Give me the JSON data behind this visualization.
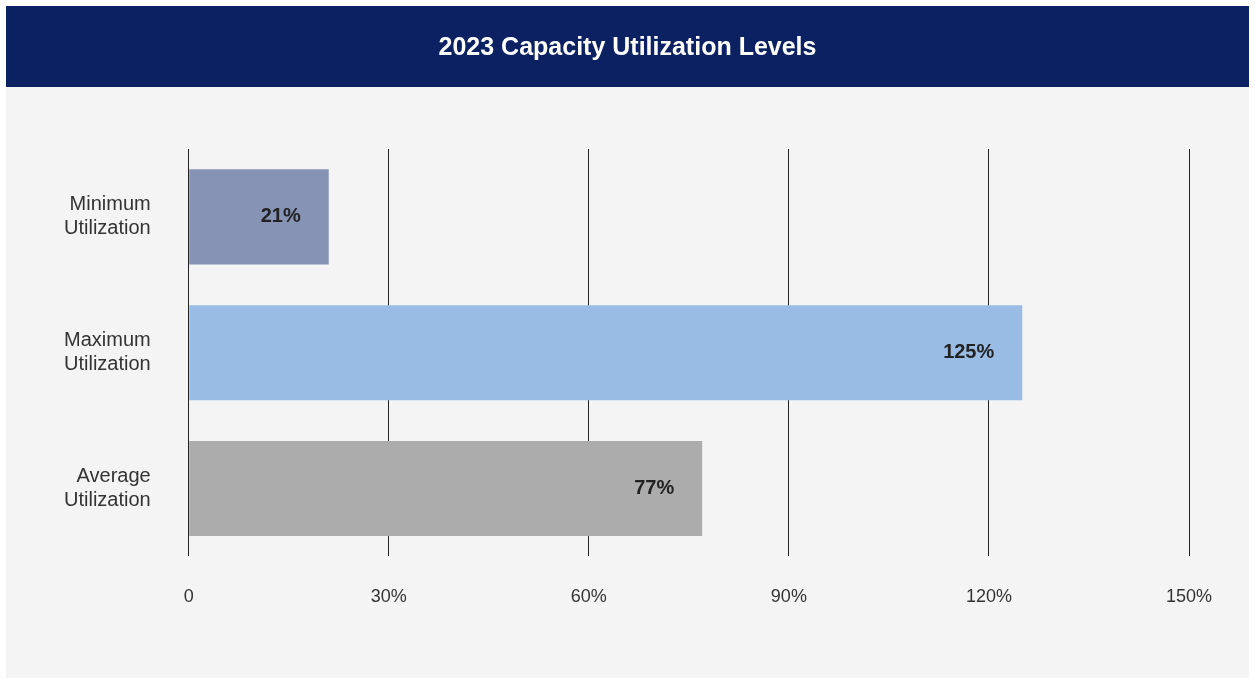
{
  "chart_data": {
    "type": "bar",
    "orientation": "horizontal",
    "title": "2023 Capacity Utilization Levels",
    "categories": [
      "Minimum Utilization",
      "Maximum Utilization",
      "Average Utilization"
    ],
    "values": [
      21,
      125,
      77
    ],
    "colors": [
      "#8793b5",
      "#98bce3",
      "#acacac"
    ],
    "value_labels": [
      "21%",
      "125%",
      "77%"
    ],
    "xlim": [
      0,
      150
    ],
    "xticks": [
      {
        "value": 0,
        "label": "0"
      },
      {
        "value": 30,
        "label": "30%"
      },
      {
        "value": 60,
        "label": "60%"
      },
      {
        "value": 90,
        "label": "90%"
      },
      {
        "value": 120,
        "label": "120%"
      },
      {
        "value": 150,
        "label": "150%"
      }
    ],
    "grid": "x",
    "legend": false
  }
}
